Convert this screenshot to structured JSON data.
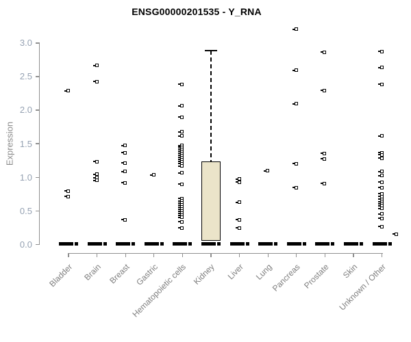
{
  "chart_data": {
    "type": "box",
    "title": "ENSG00000201535 - Y_RNA",
    "ylabel": "Expression",
    "xlabel": "",
    "ylim": [
      0.0,
      3.0
    ],
    "yticks": [
      "0.0",
      "0.5",
      "1.0",
      "1.5",
      "2.0",
      "2.5",
      "3.0"
    ],
    "grid": false,
    "legend": "none",
    "categories": [
      "Bladder",
      "Brain",
      "Breast",
      "Gastric",
      "Hematopoietic cells",
      "Kidney",
      "Liver",
      "Lung",
      "Pancreas",
      "Prostate",
      "Skin",
      "Unknown / Other"
    ],
    "colors": {
      "box_fill": "#ebe4c9",
      "point_stroke": "#000000",
      "median_bar": "#000000",
      "axis": "#8f8f8f",
      "ytick_label": "#95a1b2",
      "xtick_label": "#7e7e7e",
      "ylabel": "#8a8a8a",
      "title": "#000000",
      "background": "#ffffff"
    },
    "series": [
      {
        "category": "Bladder",
        "median": 0,
        "points": [
          2.28,
          0.79,
          0.71
        ]
      },
      {
        "category": "Brain",
        "median": 0,
        "points": [
          2.66,
          2.42,
          1.23,
          1.04,
          0.99,
          0.95
        ]
      },
      {
        "category": "Breast",
        "median": 0,
        "points": [
          1.47,
          1.36,
          1.21,
          1.08,
          0.91,
          0.36
        ]
      },
      {
        "category": "Gastric",
        "median": 0,
        "points": [
          1.03
        ]
      },
      {
        "category": "Hematopoietic cells",
        "median": 0,
        "points": [
          2.38,
          2.06,
          1.89,
          1.67,
          1.61,
          1.47,
          1.44,
          1.41,
          1.38,
          1.35,
          1.32,
          1.29,
          1.26,
          1.23,
          1.2,
          1.16,
          1.06,
          0.89,
          0.68,
          0.64,
          0.61,
          0.58,
          0.55,
          0.52,
          0.49,
          0.46,
          0.43,
          0.4,
          0.33,
          0.24
        ]
      },
      {
        "category": "Kidney",
        "median": 0,
        "points": [],
        "box": {
          "low": 0.05,
          "high": 1.24,
          "whisker_high": 2.89
        }
      },
      {
        "category": "Liver",
        "median": 0,
        "points": [
          0.97,
          0.92,
          0.62,
          0.36,
          0.24
        ]
      },
      {
        "category": "Lung",
        "median": 0,
        "points": [
          1.09
        ]
      },
      {
        "category": "Pancreas",
        "median": 0,
        "points": [
          3.2,
          2.59,
          2.09,
          1.2,
          0.84
        ]
      },
      {
        "category": "Prostate",
        "median": 0,
        "points": [
          2.86,
          2.29,
          1.35,
          1.27,
          0.9
        ]
      },
      {
        "category": "Skin",
        "median": 0,
        "points": []
      },
      {
        "category": "Unknown / Other",
        "median": 0,
        "points": [
          2.87,
          2.63,
          2.38,
          1.61,
          1.36,
          1.33,
          1.28,
          1.08,
          1.02,
          0.92,
          0.84,
          0.75,
          0.71,
          0.67,
          0.63,
          0.6,
          0.57,
          0.53,
          0.45,
          0.38,
          0.26,
          {
            "v": 0.15,
            "dx": 21
          }
        ]
      }
    ]
  }
}
